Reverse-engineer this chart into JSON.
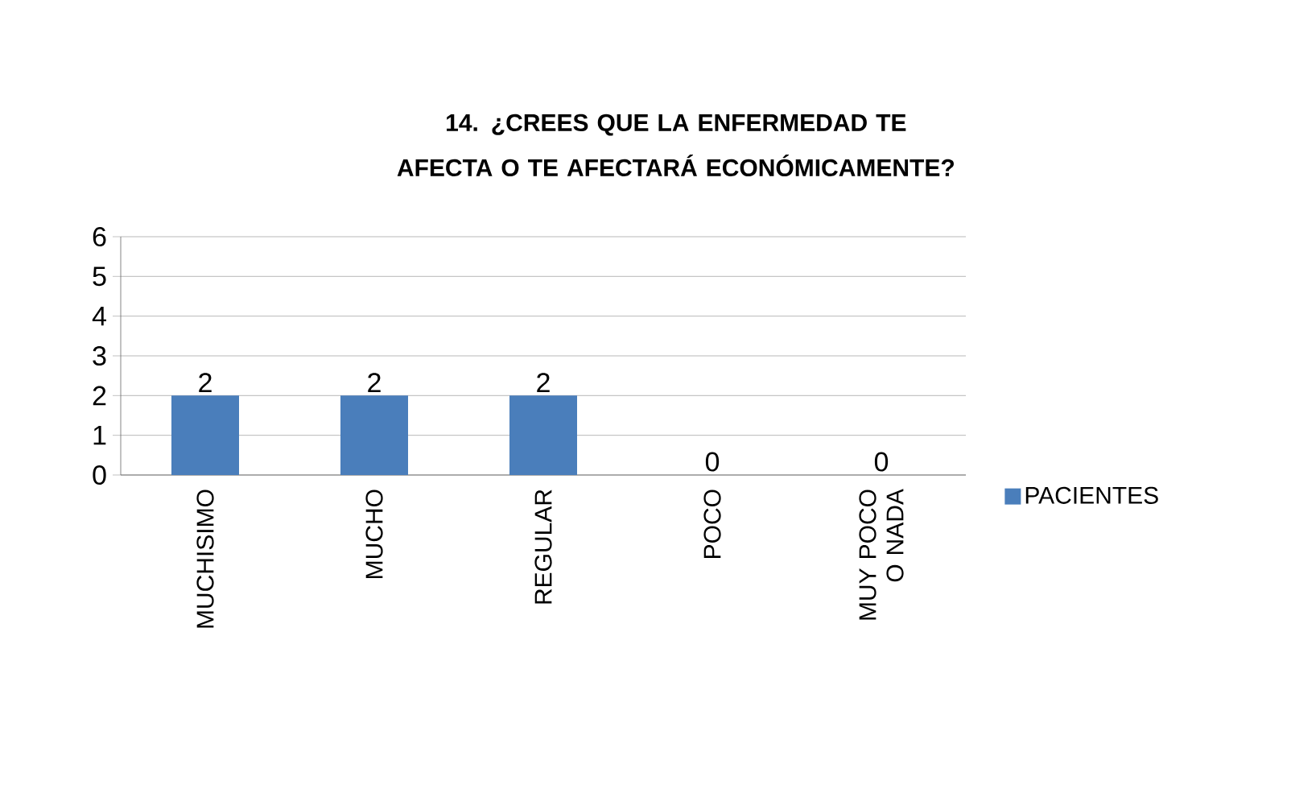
{
  "chart_data": {
    "type": "bar",
    "title": "14. ¿CREES QUE LA ENFERMEDAD TE AFECTA O TE AFECTARÁ ECONÓMICAMENTE?",
    "categories": [
      "MUCHISIMO",
      "MUCHO",
      "REGULAR",
      "POCO",
      "MUY POCO O NADA"
    ],
    "series": [
      {
        "name": "PACIENTES",
        "color": "#4a7ebb",
        "values": [
          2,
          2,
          2,
          0,
          0
        ]
      }
    ],
    "ylim": [
      0,
      6
    ],
    "yticks": [
      0,
      1,
      2,
      3,
      4,
      5,
      6
    ],
    "grid": "y",
    "legend": "right",
    "data_labels": true
  }
}
